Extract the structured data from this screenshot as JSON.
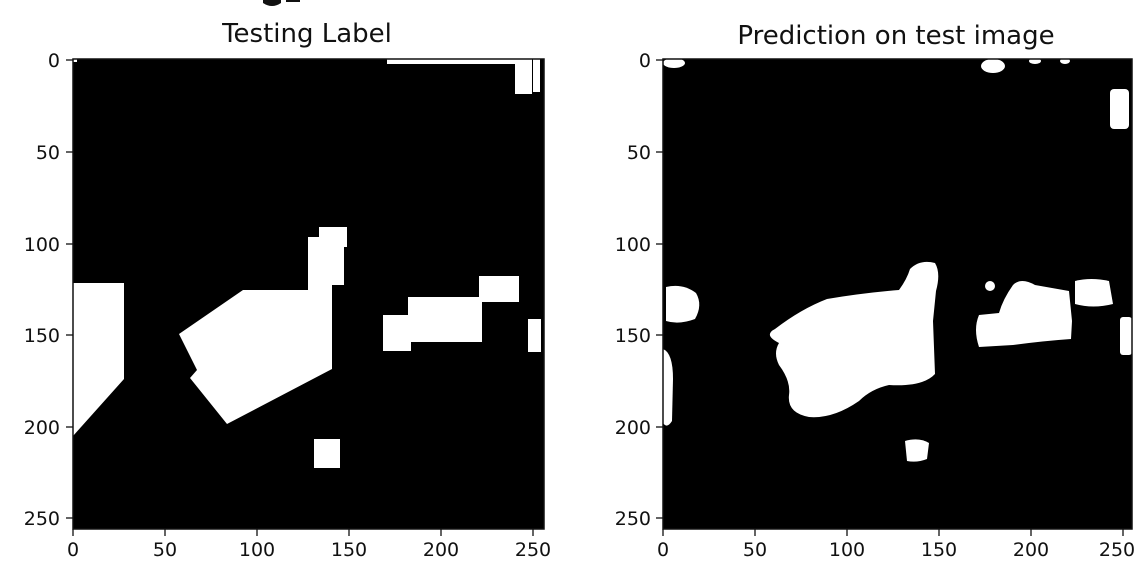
{
  "panels": [
    {
      "title": "Testing Label",
      "x_ticks": [
        "0",
        "50",
        "100",
        "150",
        "200",
        "250"
      ],
      "y_ticks": [
        "0",
        "50",
        "100",
        "150",
        "200",
        "250"
      ]
    },
    {
      "title": "Prediction on test image",
      "x_ticks": [
        "0",
        "50",
        "100",
        "150",
        "200",
        "250"
      ],
      "y_ticks": [
        "0",
        "50",
        "100",
        "150",
        "200",
        "250"
      ]
    }
  ],
  "image_size": [
    256,
    256
  ],
  "colors": {
    "background": "#000000",
    "foreground": "#ffffff",
    "axis": "#111111"
  }
}
